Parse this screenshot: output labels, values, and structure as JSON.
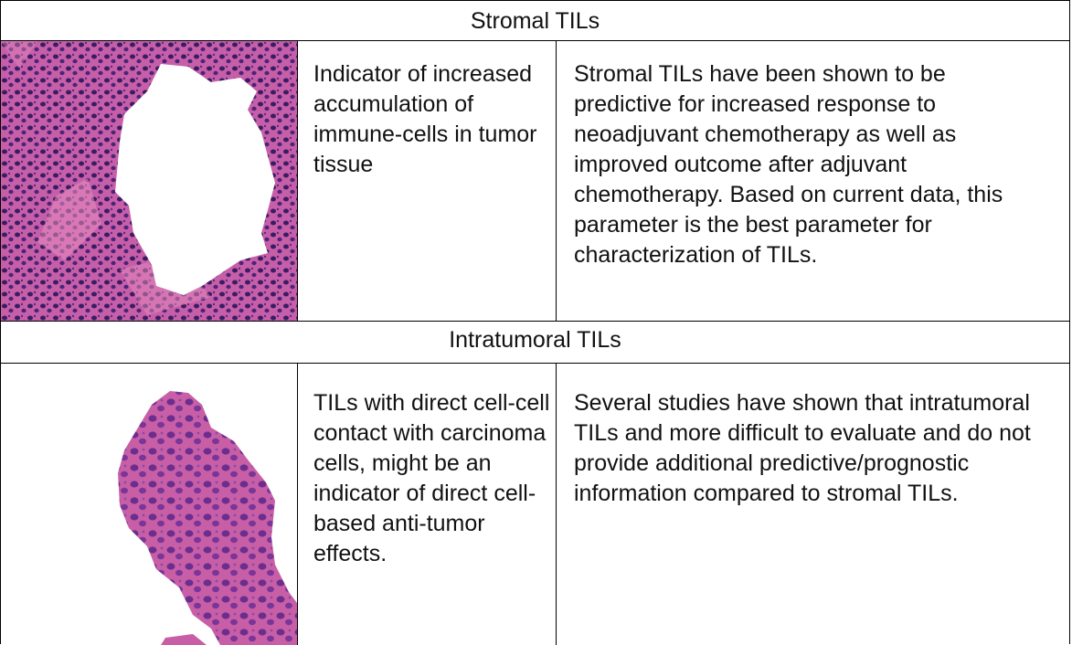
{
  "sections": [
    {
      "header": "Stromal TILs",
      "image_icon": "stromal-tils-histology",
      "indicator": "Indicator of increased accumulation of immune-cells in tumor tissue",
      "evidence": "Stromal TILs have been shown to be predictive for increased response to neoadjuvant chemotherapy as well as improved outcome after adjuvant chemotherapy. Based on current data, this parameter is the best parameter for characterization of TILs."
    },
    {
      "header": "Intratumoral TILs",
      "image_icon": "intratumoral-tils-histology",
      "indicator": "TILs with direct cell-cell contact with carcinoma cells, might be an indicator of direct cell-based anti-tumor effects.",
      "evidence": "Several studies have shown that intratumoral TILs and more difficult to evaluate and do not provide additional predictive/prognostic information compared to stromal TILs."
    }
  ],
  "colors": {
    "tissue": "#c65aa8",
    "nuclei": "#3b1f66",
    "stroma": "#e07ab0"
  }
}
